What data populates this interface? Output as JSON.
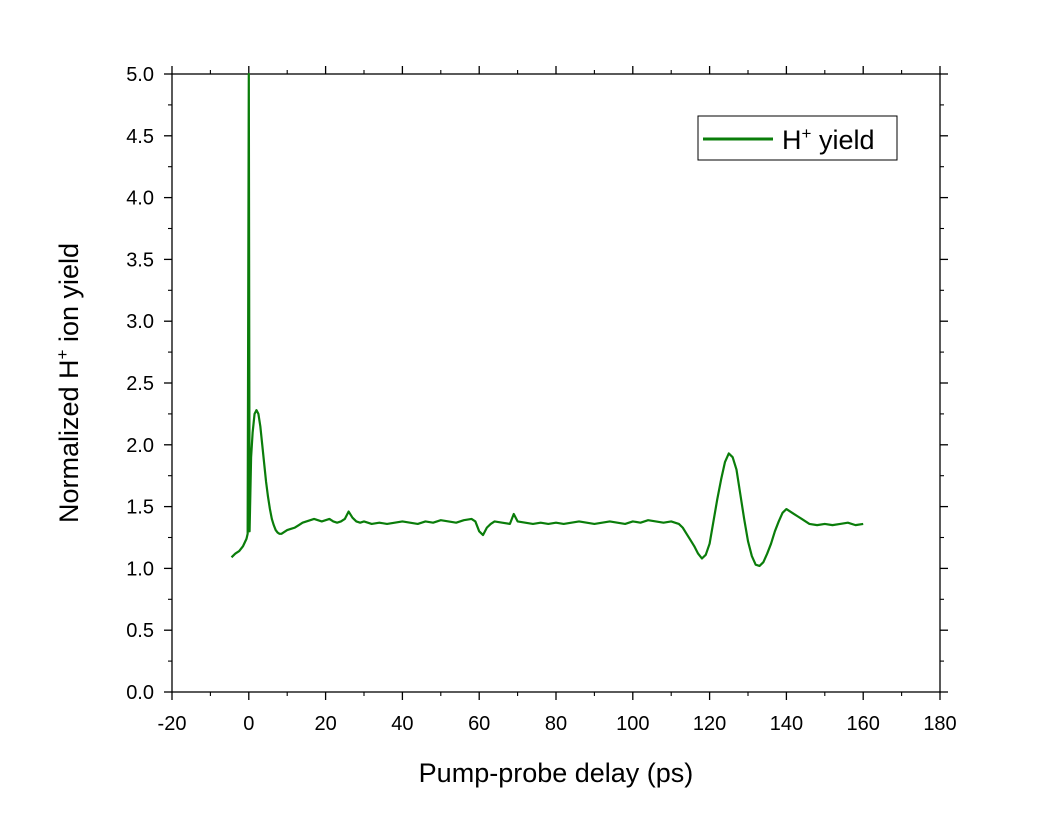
{
  "chart_data": {
    "type": "line",
    "title": "",
    "xlabel": "Pump-probe delay (ps)",
    "ylabel": {
      "pre": "Normalized H",
      "sup": "+",
      "post": " ion yield"
    },
    "xlim": [
      -20,
      180
    ],
    "ylim": [
      0.0,
      5.0
    ],
    "xticks": [
      -20,
      0,
      20,
      40,
      60,
      80,
      100,
      120,
      140,
      160,
      180
    ],
    "yticks": [
      "0.0",
      "0.5",
      "1.0",
      "1.5",
      "2.0",
      "2.5",
      "3.0",
      "3.5",
      "4.0",
      "4.5",
      "5.0"
    ],
    "grid": false,
    "legend_position": "top-right",
    "series": [
      {
        "name": {
          "pre": "H",
          "sup": "+",
          "post": " yield"
        },
        "color": "#0a7d0a",
        "x": [
          -4.5,
          -3.5,
          -2.5,
          -1.5,
          -0.6,
          -0.3,
          0,
          0.2,
          0.4,
          0.6,
          1.0,
          1.5,
          2.0,
          2.5,
          3.0,
          3.5,
          4.0,
          4.5,
          5.0,
          5.5,
          6.0,
          6.5,
          7.0,
          7.5,
          8.0,
          8.5,
          9.0,
          10,
          11,
          12,
          13,
          14,
          15,
          16,
          17,
          18,
          19,
          20,
          21,
          22,
          23,
          24,
          25,
          26,
          27,
          28,
          29,
          30,
          32,
          34,
          36,
          38,
          40,
          42,
          44,
          46,
          48,
          50,
          52,
          54,
          56,
          58,
          59,
          60,
          61,
          62,
          63,
          64,
          66,
          68,
          69,
          70,
          72,
          74,
          76,
          78,
          80,
          82,
          84,
          86,
          88,
          90,
          92,
          94,
          96,
          98,
          100,
          102,
          104,
          106,
          108,
          110,
          111,
          112,
          113,
          114,
          115,
          116,
          117,
          118,
          119,
          120,
          121,
          122,
          123,
          124,
          125,
          126,
          127,
          128,
          129,
          130,
          131,
          132,
          133,
          134,
          135,
          136,
          137,
          138,
          139,
          140,
          141,
          142,
          143,
          144,
          145,
          146,
          148,
          150,
          152,
          154,
          156,
          158,
          160
        ],
        "y": [
          1.09,
          1.12,
          1.14,
          1.18,
          1.24,
          1.28,
          5.0,
          1.3,
          1.6,
          1.9,
          2.1,
          2.25,
          2.28,
          2.25,
          2.15,
          2.0,
          1.85,
          1.7,
          1.58,
          1.48,
          1.4,
          1.35,
          1.31,
          1.29,
          1.28,
          1.28,
          1.29,
          1.31,
          1.32,
          1.33,
          1.35,
          1.37,
          1.38,
          1.39,
          1.4,
          1.39,
          1.38,
          1.39,
          1.4,
          1.38,
          1.37,
          1.38,
          1.4,
          1.46,
          1.41,
          1.38,
          1.37,
          1.38,
          1.36,
          1.37,
          1.36,
          1.37,
          1.38,
          1.37,
          1.36,
          1.38,
          1.37,
          1.39,
          1.38,
          1.37,
          1.39,
          1.4,
          1.38,
          1.3,
          1.27,
          1.33,
          1.36,
          1.38,
          1.37,
          1.36,
          1.44,
          1.38,
          1.37,
          1.36,
          1.37,
          1.36,
          1.37,
          1.36,
          1.37,
          1.38,
          1.37,
          1.36,
          1.37,
          1.38,
          1.37,
          1.36,
          1.38,
          1.37,
          1.39,
          1.38,
          1.37,
          1.38,
          1.37,
          1.36,
          1.33,
          1.28,
          1.23,
          1.18,
          1.12,
          1.08,
          1.11,
          1.2,
          1.38,
          1.56,
          1.72,
          1.86,
          1.93,
          1.9,
          1.8,
          1.6,
          1.4,
          1.22,
          1.1,
          1.03,
          1.02,
          1.05,
          1.12,
          1.2,
          1.3,
          1.38,
          1.45,
          1.48,
          1.46,
          1.44,
          1.42,
          1.4,
          1.38,
          1.36,
          1.35,
          1.36,
          1.35,
          1.36,
          1.37,
          1.35,
          1.36
        ]
      }
    ]
  }
}
